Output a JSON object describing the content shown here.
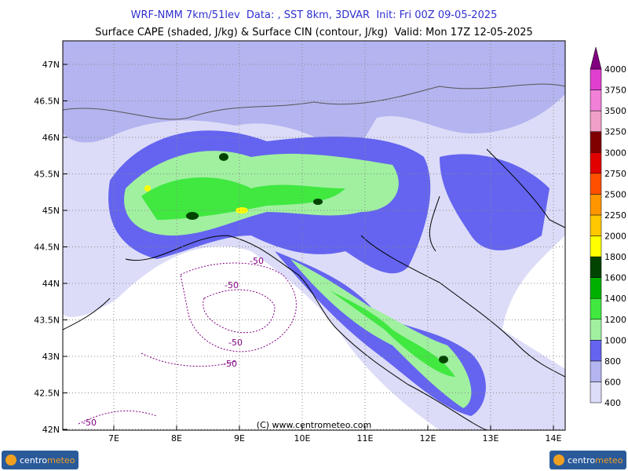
{
  "header": {
    "title": "WRF-NMM 7km/51lev  Data: , SST 8km, 3DVAR  Init: Fri 00Z 09-05-2025",
    "subtitle": "Surface CAPE (shaded, J/kg) & Surface CIN (contour, J/kg)  Valid: Mon 17Z 12-05-2025"
  },
  "axes": {
    "lat_labels": [
      "47N",
      "46.5N",
      "46N",
      "45.5N",
      "45N",
      "44.5N",
      "44N",
      "43.5N",
      "43N",
      "42.5N",
      "42N"
    ],
    "lon_labels": [
      "7E",
      "8E",
      "9E",
      "10E",
      "11E",
      "12E",
      "13E",
      "14E"
    ]
  },
  "colorbar": {
    "levels": [
      400,
      600,
      800,
      1000,
      1200,
      1400,
      1600,
      1800,
      2000,
      2250,
      2500,
      2750,
      3000,
      3250,
      3500,
      3750,
      4000
    ],
    "colors": [
      "#dcdcf8",
      "#b4b4f0",
      "#6464f0",
      "#a0f0a0",
      "#40e840",
      "#00b000",
      "#004400",
      "#ffff00",
      "#ffc800",
      "#ff9600",
      "#ff5000",
      "#e00000",
      "#800000",
      "#f0a0c8",
      "#f080d8",
      "#e040d0"
    ],
    "extend_color": "#800080"
  },
  "contour_labels": [
    "-50",
    "-50",
    "-50",
    "-50",
    "-50"
  ],
  "copyright": "(C) www.centrometeo.com",
  "logo": {
    "part1": "centro",
    "part2": "meteo"
  }
}
